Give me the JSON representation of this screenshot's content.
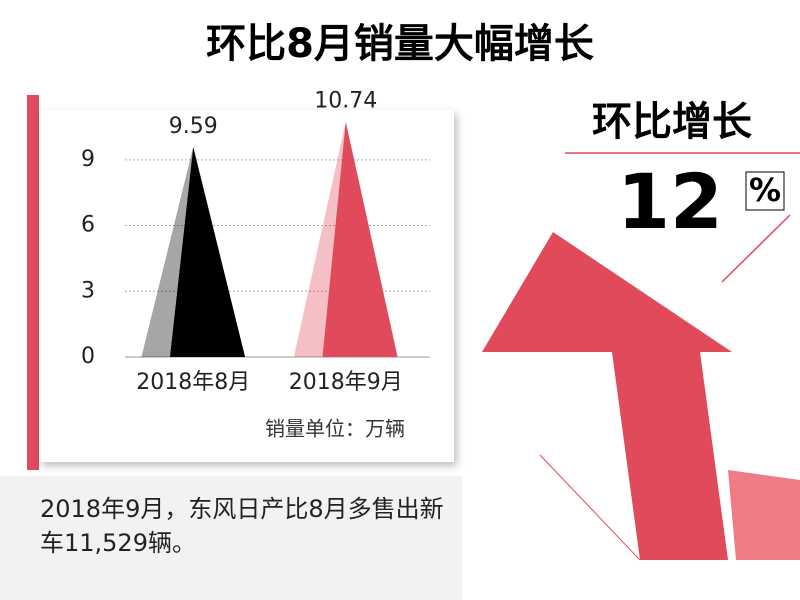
{
  "chart_data": {
    "type": "pyramid",
    "title": "环比8月销量大幅增长",
    "categories": [
      "2018年8月",
      "2018年9月"
    ],
    "values": [
      9.59,
      10.74
    ],
    "colors": [
      "#000000",
      "#e04a5a"
    ],
    "ylim": [
      0,
      11
    ],
    "yticks": [
      0,
      3,
      6,
      9
    ],
    "grid": true,
    "unit_note": "销量单位：万辆"
  },
  "growth": {
    "label": "环比增长",
    "value": 12,
    "unit": "%"
  },
  "footnote": "2018年9月，东风日产比8月多售出新车11,529辆。"
}
